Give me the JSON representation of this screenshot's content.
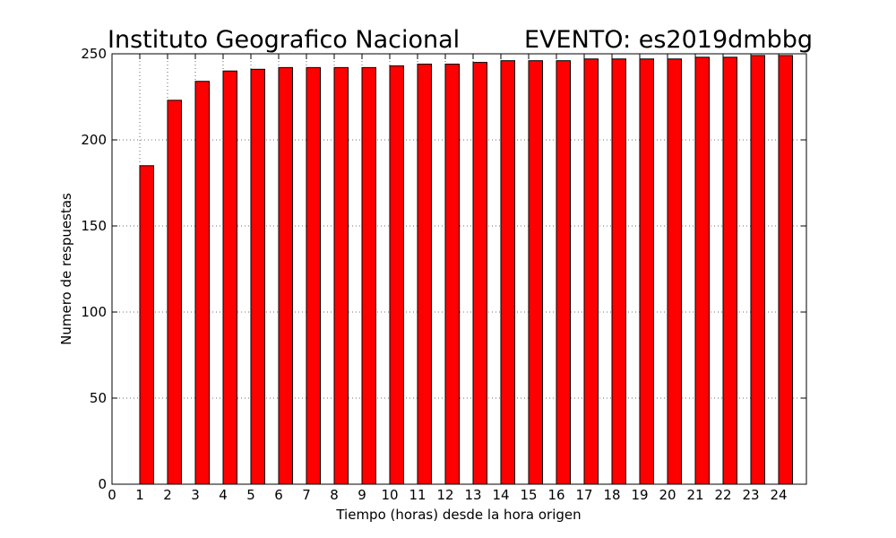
{
  "header": {
    "title_left": "Instituto Geografico Nacional",
    "title_right": "EVENTO: es2019dmbbg"
  },
  "colors": {
    "bar_fill": "#ff0000",
    "bar_edge": "#000000"
  },
  "chart_data": {
    "type": "bar",
    "xlabel": "Tiempo (horas) desde la hora origen",
    "ylabel": "Numero de respuestas",
    "x": [
      1,
      2,
      3,
      4,
      5,
      6,
      7,
      8,
      9,
      10,
      11,
      12,
      13,
      14,
      15,
      16,
      17,
      18,
      19,
      20,
      21,
      22,
      23,
      24
    ],
    "values": [
      185,
      223,
      234,
      240,
      241,
      242,
      242,
      242,
      242,
      243,
      244,
      244,
      245,
      246,
      246,
      246,
      247,
      247,
      247,
      247,
      248,
      248,
      249,
      249
    ],
    "xlim": [
      0,
      25
    ],
    "ylim": [
      0,
      250
    ],
    "xticks": [
      0,
      1,
      2,
      3,
      4,
      5,
      6,
      7,
      8,
      9,
      10,
      11,
      12,
      13,
      14,
      15,
      16,
      17,
      18,
      19,
      20,
      21,
      22,
      23,
      24
    ],
    "yticks": [
      0,
      50,
      100,
      150,
      200,
      250
    ],
    "grid": true,
    "legend": "none"
  }
}
